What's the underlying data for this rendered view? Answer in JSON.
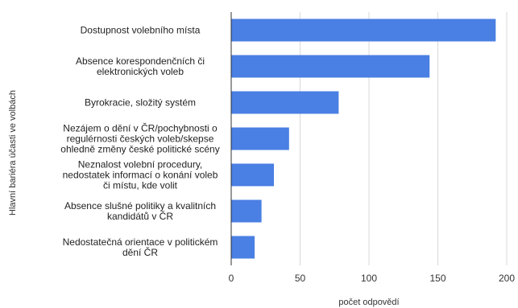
{
  "chart_data": {
    "type": "bar",
    "orientation": "horizontal",
    "categories": [
      [
        "Dostupnost volebního místa"
      ],
      [
        "Absence korespondenčních či",
        "elektronických voleb"
      ],
      [
        "Byrokracie, složitý systém"
      ],
      [
        "Nezájem o dění v ČR/pochybnosti o",
        "regulérnosti českých voleb/skepse",
        "ohledně změny české politické scény"
      ],
      [
        "Neznalost volební procedury,",
        "nedostatek informací o konání voleb",
        "či místu, kde volit"
      ],
      [
        "Absence slušné politiky a kvalitních",
        "kandidátů v ČR"
      ],
      [
        "Nedostatečná orientace v politickém",
        "dění ČR"
      ]
    ],
    "values": [
      192,
      144,
      78,
      42,
      31,
      22,
      17
    ],
    "xlabel": "počet odpovědí",
    "ylabel": "Hlavní bariéra účasti ve volbách",
    "xlim": [
      0,
      200
    ],
    "xticks": [
      0,
      50,
      100,
      150,
      200
    ],
    "grid": "vertical",
    "bar_color": "#4a7fe3"
  }
}
